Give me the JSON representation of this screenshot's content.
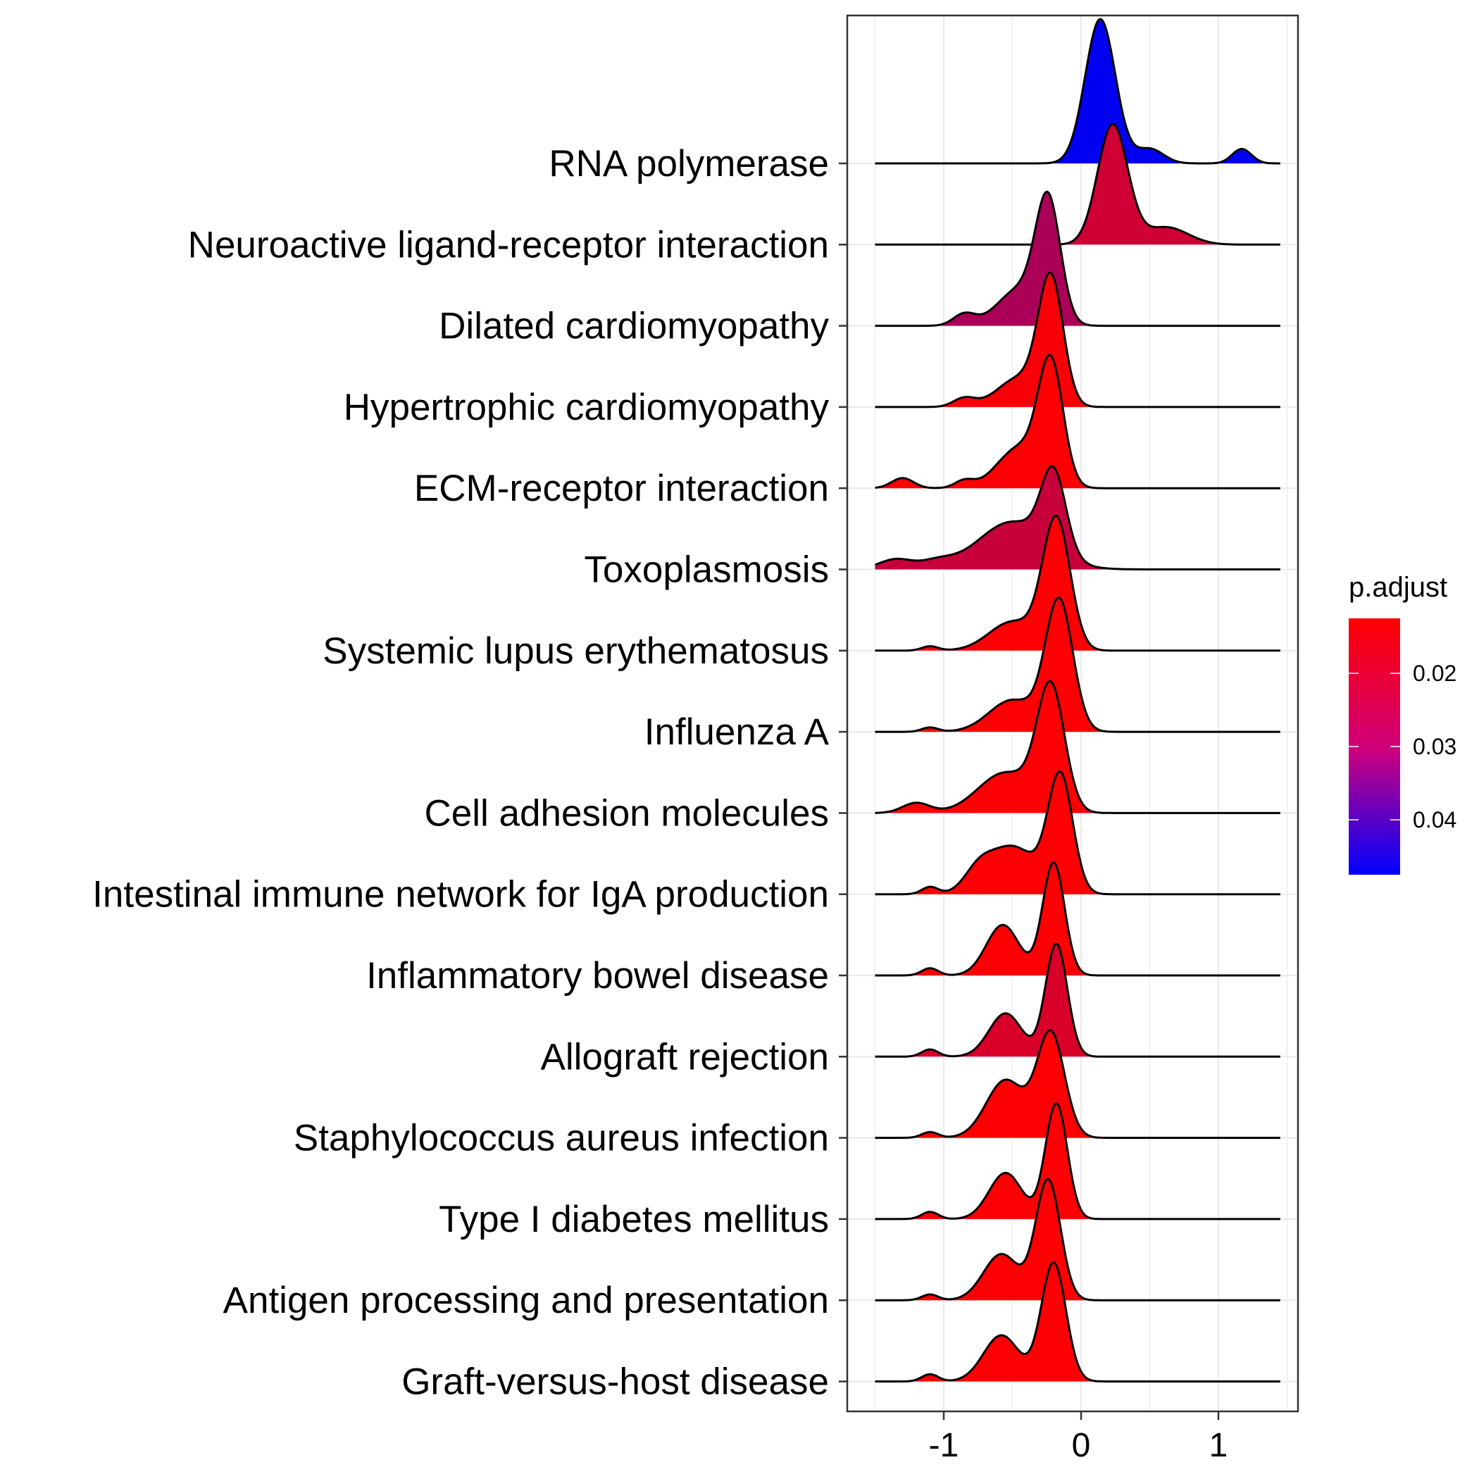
{
  "chart_data": {
    "type": "ridgeline",
    "xlabel": "",
    "ylabel": "",
    "xlim": [
      -1.5,
      1.5
    ],
    "x_ticks": [
      -1,
      0,
      1
    ],
    "x_tick_labels": [
      "-1",
      "0",
      "1"
    ],
    "grid": true,
    "legend": {
      "title": "p.adjust",
      "placement": "right",
      "range": [
        0.0125,
        0.0475
      ],
      "ticks": [
        0.02,
        0.03,
        0.04
      ],
      "tick_labels": [
        "0.02",
        "0.03",
        "0.04"
      ],
      "low_color": "#ff0000",
      "high_color": "#0000ff"
    },
    "series": [
      {
        "name": "RNA polymerase",
        "p_adjust": 0.047,
        "peaks": [
          [
            0.14,
            0.11,
            1.0
          ],
          [
            0.5,
            0.1,
            0.1
          ],
          [
            1.17,
            0.07,
            0.1
          ]
        ]
      },
      {
        "name": "Neuroactive ligand-receptor interaction",
        "p_adjust": 0.0175,
        "peaks": [
          [
            0.23,
            0.11,
            0.83
          ],
          [
            0.62,
            0.16,
            0.12
          ]
        ]
      },
      {
        "name": "Dilated cardiomyopathy",
        "p_adjust": 0.021,
        "peaks": [
          [
            -0.24,
            0.09,
            0.82
          ],
          [
            -0.45,
            0.16,
            0.25
          ],
          [
            -0.85,
            0.08,
            0.08
          ]
        ]
      },
      {
        "name": "Hypertrophic cardiomyopathy",
        "p_adjust": 0.0132,
        "peaks": [
          [
            -0.22,
            0.09,
            0.86
          ],
          [
            -0.45,
            0.16,
            0.2
          ],
          [
            -0.85,
            0.08,
            0.06
          ]
        ]
      },
      {
        "name": "ECM-receptor interaction",
        "p_adjust": 0.0128,
        "peaks": [
          [
            -0.22,
            0.09,
            0.82
          ],
          [
            -0.45,
            0.16,
            0.28
          ],
          [
            -0.85,
            0.07,
            0.05
          ],
          [
            -1.3,
            0.08,
            0.07
          ]
        ]
      },
      {
        "name": "Toxoplasmosis",
        "p_adjust": 0.0182,
        "peaks": [
          [
            -0.2,
            0.09,
            0.55
          ],
          [
            -0.5,
            0.25,
            0.33
          ],
          [
            -1.35,
            0.12,
            0.07
          ],
          [
            -1.05,
            0.12,
            0.05
          ]
        ]
      },
      {
        "name": "Systemic lupus erythematosus",
        "p_adjust": 0.0128,
        "peaks": [
          [
            -0.18,
            0.1,
            0.9
          ],
          [
            -0.5,
            0.17,
            0.2
          ],
          [
            -1.1,
            0.06,
            0.03
          ]
        ]
      },
      {
        "name": "Influenza A",
        "p_adjust": 0.0128,
        "peaks": [
          [
            -0.16,
            0.1,
            0.9
          ],
          [
            -0.5,
            0.17,
            0.22
          ],
          [
            -1.1,
            0.06,
            0.03
          ]
        ]
      },
      {
        "name": "Cell adhesion molecules",
        "p_adjust": 0.0128,
        "peaks": [
          [
            -0.22,
            0.1,
            0.84
          ],
          [
            -0.55,
            0.2,
            0.28
          ],
          [
            -1.2,
            0.1,
            0.07
          ]
        ]
      },
      {
        "name": "Intestinal immune network for IgA production",
        "p_adjust": 0.0128,
        "peaks": [
          [
            -0.15,
            0.09,
            0.8
          ],
          [
            -0.5,
            0.18,
            0.33
          ],
          [
            -0.75,
            0.1,
            0.12
          ],
          [
            -1.1,
            0.06,
            0.05
          ]
        ]
      },
      {
        "name": "Inflammatory bowel disease",
        "p_adjust": 0.0128,
        "peaks": [
          [
            -0.2,
            0.08,
            0.78
          ],
          [
            -0.57,
            0.12,
            0.35
          ],
          [
            -1.1,
            0.06,
            0.05
          ]
        ]
      },
      {
        "name": "Allograft rejection",
        "p_adjust": 0.0165,
        "peaks": [
          [
            -0.18,
            0.08,
            0.78
          ],
          [
            -0.55,
            0.12,
            0.3
          ],
          [
            -1.1,
            0.06,
            0.05
          ]
        ]
      },
      {
        "name": "Staphylococcus aureus infection",
        "p_adjust": 0.0128,
        "peaks": [
          [
            -0.22,
            0.1,
            0.72
          ],
          [
            -0.55,
            0.14,
            0.4
          ],
          [
            -1.1,
            0.06,
            0.04
          ]
        ]
      },
      {
        "name": "Type I diabetes mellitus",
        "p_adjust": 0.0128,
        "peaks": [
          [
            -0.18,
            0.08,
            0.8
          ],
          [
            -0.55,
            0.12,
            0.32
          ],
          [
            -1.1,
            0.06,
            0.05
          ]
        ]
      },
      {
        "name": "Antigen processing and presentation",
        "p_adjust": 0.0128,
        "peaks": [
          [
            -0.24,
            0.09,
            0.83
          ],
          [
            -0.58,
            0.13,
            0.32
          ],
          [
            -1.1,
            0.06,
            0.04
          ]
        ]
      },
      {
        "name": "Graft-versus-host disease",
        "p_adjust": 0.0128,
        "peaks": [
          [
            -0.2,
            0.09,
            0.82
          ],
          [
            -0.58,
            0.13,
            0.32
          ],
          [
            -1.1,
            0.06,
            0.05
          ]
        ]
      }
    ]
  }
}
